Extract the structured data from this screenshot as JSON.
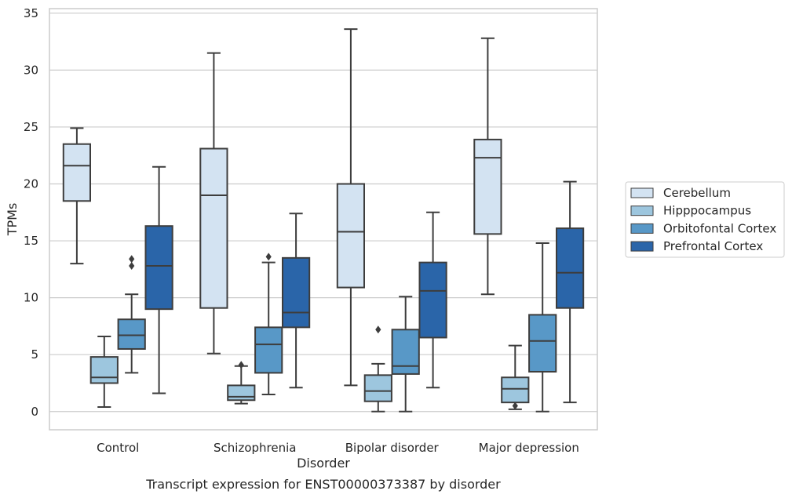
{
  "chart_data": {
    "type": "box",
    "caption": "Transcript expression for ENST00000373387 by disorder",
    "xlabel": "Disorder",
    "ylabel": "TPMs",
    "ylim": [
      -1.6,
      35.4
    ],
    "yticks": [
      0,
      5,
      10,
      15,
      20,
      25,
      30,
      35
    ],
    "grid": "horizontal",
    "legend_position": "right",
    "categories": [
      "Control",
      "Schizophrenia",
      "Bipolar disorder",
      "Major depression"
    ],
    "series": [
      {
        "name": "Cerebellum",
        "color": "#d3e3f2",
        "boxes": [
          {
            "whisker_low": 13.0,
            "q1": 18.5,
            "median": 21.6,
            "q3": 23.5,
            "whisker_high": 24.9,
            "outliers": []
          },
          {
            "whisker_low": 5.1,
            "q1": 9.1,
            "median": 19.0,
            "q3": 23.1,
            "whisker_high": 31.5,
            "outliers": []
          },
          {
            "whisker_low": 2.3,
            "q1": 10.9,
            "median": 15.8,
            "q3": 20.0,
            "whisker_high": 33.6,
            "outliers": []
          },
          {
            "whisker_low": 10.3,
            "q1": 15.6,
            "median": 22.3,
            "q3": 23.9,
            "whisker_high": 32.8,
            "outliers": []
          }
        ]
      },
      {
        "name": "Hipppocampus",
        "color": "#9dc6de",
        "boxes": [
          {
            "whisker_low": 0.4,
            "q1": 2.5,
            "median": 3.0,
            "q3": 4.8,
            "whisker_high": 6.6,
            "outliers": []
          },
          {
            "whisker_low": 0.7,
            "q1": 1.0,
            "median": 1.3,
            "q3": 2.3,
            "whisker_high": 4.0,
            "outliers": [
              4.1
            ]
          },
          {
            "whisker_low": 0.0,
            "q1": 0.9,
            "median": 1.8,
            "q3": 3.2,
            "whisker_high": 4.2,
            "outliers": [
              7.2
            ]
          },
          {
            "whisker_low": 0.2,
            "q1": 0.8,
            "median": 2.0,
            "q3": 3.0,
            "whisker_high": 5.8,
            "outliers": [
              0.5
            ]
          }
        ]
      },
      {
        "name": "Orbitofontal Cortex",
        "color": "#5898c7",
        "boxes": [
          {
            "whisker_low": 3.4,
            "q1": 5.5,
            "median": 6.7,
            "q3": 8.1,
            "whisker_high": 10.3,
            "outliers": [
              12.8,
              13.4
            ]
          },
          {
            "whisker_low": 1.5,
            "q1": 3.4,
            "median": 5.9,
            "q3": 7.4,
            "whisker_high": 13.1,
            "outliers": [
              13.6
            ]
          },
          {
            "whisker_low": 0.0,
            "q1": 3.3,
            "median": 4.0,
            "q3": 7.2,
            "whisker_high": 10.1,
            "outliers": []
          },
          {
            "whisker_low": 0.0,
            "q1": 3.5,
            "median": 6.2,
            "q3": 8.5,
            "whisker_high": 14.8,
            "outliers": []
          }
        ]
      },
      {
        "name": "Prefrontal Cortex",
        "color": "#2a65a9",
        "boxes": [
          {
            "whisker_low": 1.6,
            "q1": 9.0,
            "median": 12.8,
            "q3": 16.3,
            "whisker_high": 21.5,
            "outliers": []
          },
          {
            "whisker_low": 2.1,
            "q1": 7.4,
            "median": 8.7,
            "q3": 13.5,
            "whisker_high": 17.4,
            "outliers": []
          },
          {
            "whisker_low": 2.1,
            "q1": 6.5,
            "median": 10.6,
            "q3": 13.1,
            "whisker_high": 17.5,
            "outliers": []
          },
          {
            "whisker_low": 0.8,
            "q1": 9.1,
            "median": 12.2,
            "q3": 16.1,
            "whisker_high": 20.2,
            "outliers": []
          }
        ]
      }
    ]
  }
}
